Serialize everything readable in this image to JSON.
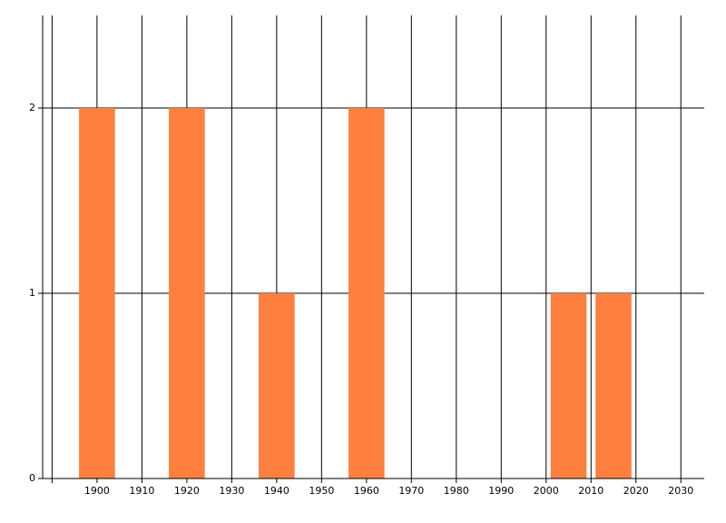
{
  "chart_data": {
    "type": "bar",
    "x": [
      1900,
      1920,
      1940,
      1960,
      2005,
      2015
    ],
    "values": [
      2,
      2,
      1,
      2,
      1,
      1
    ],
    "color": "#ff7f3f",
    "xlim": [
      1887.9,
      2035.2
    ],
    "xticks": [
      {
        "value": 1890,
        "label": null
      },
      1900,
      1910,
      1920,
      1930,
      1940,
      1950,
      1960,
      1970,
      1980,
      1990,
      2000,
      2010,
      2020,
      2030
    ],
    "ylim": [
      0,
      2.5
    ],
    "yticks": [
      0,
      1,
      2
    ],
    "grid": true
  }
}
